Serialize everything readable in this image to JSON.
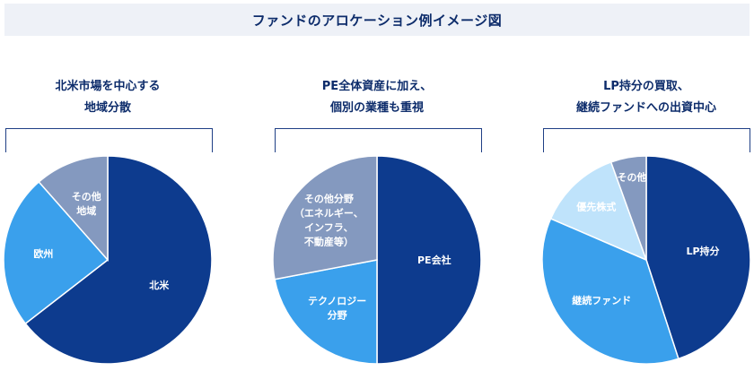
{
  "page": {
    "title": "ファンドのアロケーション例イメージ図"
  },
  "panels": [
    {
      "caption_lines": [
        "北米市場を中心する",
        "地域分散"
      ]
    },
    {
      "caption_lines": [
        "PE全体資産に加え、",
        "個別の業種も重視"
      ]
    },
    {
      "caption_lines": [
        "LP持分の買取、",
        "継続ファンドへの出資中心"
      ]
    }
  ],
  "chart_data": [
    {
      "type": "pie",
      "slices": [
        {
          "label": "北米",
          "value": 64.5,
          "color": "#0d3b8e",
          "text_color": "#ffffff"
        },
        {
          "label": "欧州",
          "value": 24.0,
          "color": "#3aa0ec",
          "text_color": "#ffffff"
        },
        {
          "label": "その他 地域",
          "value": 11.5,
          "color": "#8499bf",
          "text_color": "#ffffff"
        }
      ]
    },
    {
      "type": "pie",
      "slices": [
        {
          "label": "PE会社",
          "value": 50.0,
          "color": "#0d3b8e",
          "text_color": "#ffffff"
        },
        {
          "label": "テクノロジー 分野",
          "value": 22.0,
          "color": "#3aa0ec",
          "text_color": "#ffffff"
        },
        {
          "label": "その他分野 （エネルギー、 インフラ、 不動産等）",
          "value": 28.0,
          "color": "#8499bf",
          "text_color": "#ffffff"
        }
      ]
    },
    {
      "type": "pie",
      "slices": [
        {
          "label": "LP持分",
          "value": 45.0,
          "color": "#0d3b8e",
          "text_color": "#ffffff"
        },
        {
          "label": "継続ファンド",
          "value": 36.5,
          "color": "#3aa0ec",
          "text_color": "#ffffff"
        },
        {
          "label": "優先株式",
          "value": 13.0,
          "color": "#bfe3fb",
          "text_color": "#0d2c6b"
        },
        {
          "label": "その他",
          "value": 5.5,
          "color": "#8499bf",
          "text_color": "#ffffff"
        }
      ]
    }
  ]
}
